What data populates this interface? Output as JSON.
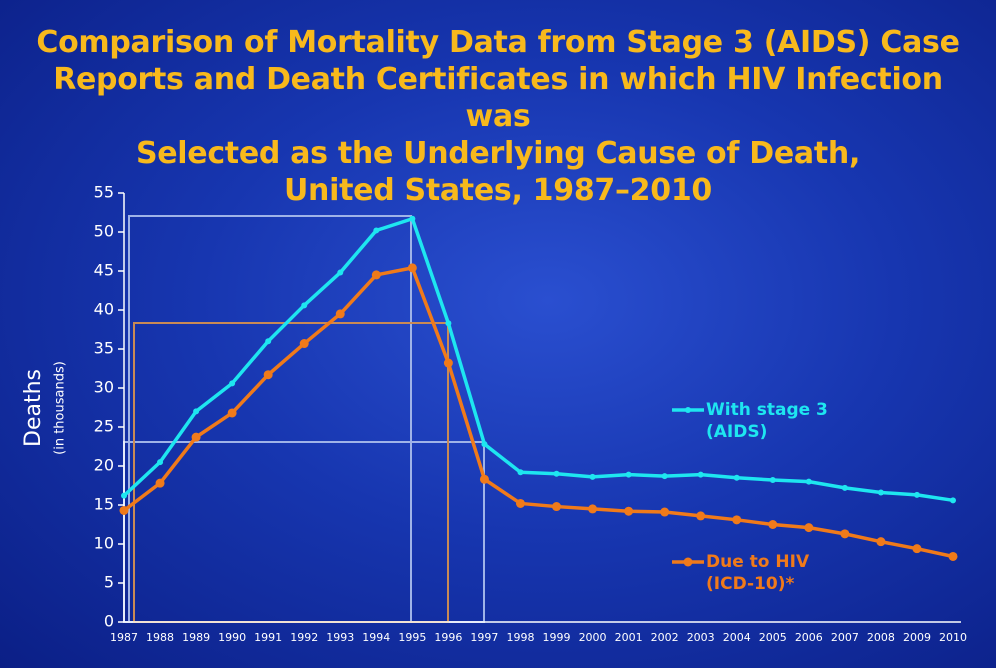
{
  "chart_data": {
    "type": "line",
    "title": "Comparison of Mortality Data from Stage 3 (AIDS) Case\nReports and Death Certificates in which HIV Infection was\nSelected as the Underlying Cause of Death,\nUnited States, 1987–2010",
    "ylabel": "Deaths",
    "ysublabel": "(in thousands)",
    "categories": [
      "1987",
      "1988",
      "1989",
      "1990",
      "1991",
      "1992",
      "1993",
      "1994",
      "1995",
      "1996",
      "1997",
      "1998",
      "1999",
      "2000",
      "2001",
      "2002",
      "2003",
      "2004",
      "2005",
      "2006",
      "2007",
      "2008",
      "2009",
      "2010"
    ],
    "series": [
      {
        "name": "With stage 3 (AIDS)",
        "color": "#1ee6f0",
        "values": [
          16.2,
          20.5,
          27,
          30.6,
          36,
          40.6,
          44.8,
          50.2,
          51.7,
          38.3,
          22.8,
          19.2,
          19,
          18.6,
          18.9,
          18.7,
          18.9,
          18.5,
          18.2,
          18,
          17.2,
          16.6,
          16.3,
          15.6
        ]
      },
      {
        "name": "Due to HIV (ICD-10)*",
        "color": "#f07a1a",
        "values": [
          14.3,
          17.8,
          23.7,
          26.8,
          31.7,
          35.7,
          39.5,
          44.5,
          45.4,
          33.2,
          18.3,
          15.2,
          14.8,
          14.5,
          14.2,
          14.1,
          13.6,
          13.1,
          12.5,
          12.1,
          11.3,
          10.3,
          9.4,
          8.4
        ]
      }
    ],
    "ylim": [
      0,
      55
    ],
    "yticks": [
      0,
      5,
      10,
      15,
      20,
      25,
      30,
      35,
      40,
      45,
      50,
      55
    ],
    "grid": false
  }
}
